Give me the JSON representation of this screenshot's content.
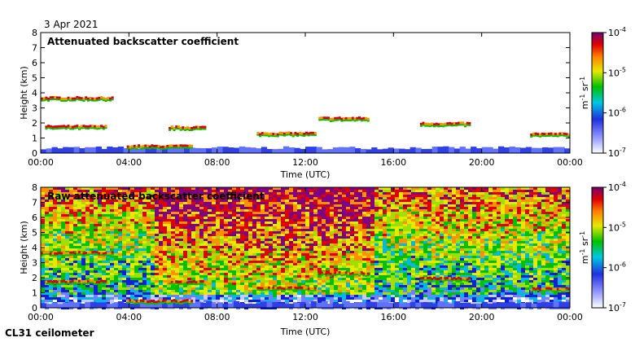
{
  "date": "3 Apr 2021",
  "footer": "CL31 ceilometer",
  "chart_data": [
    {
      "type": "heatmap",
      "title": "Attenuated backscatter coefficient",
      "xlabel": "Time (UTC)",
      "ylabel": "Height (km)",
      "x_ticks": [
        "00:00",
        "04:00",
        "08:00",
        "12:00",
        "16:00",
        "20:00",
        "00:00"
      ],
      "y_ticks": [
        "0",
        "1",
        "2",
        "3",
        "4",
        "5",
        "6",
        "7",
        "8"
      ],
      "xlim_hours": [
        0,
        24
      ],
      "ylim_km": [
        0,
        8
      ],
      "colorbar": {
        "scale": "log",
        "range": [
          1e-07,
          0.0001
        ],
        "ticks": [
          "10^-7",
          "10^-6",
          "10^-5",
          "10^-4"
        ],
        "units": "m^-1 sr^-1"
      },
      "background": "none",
      "features": [
        {
          "start_h": 0.0,
          "end_h": 3.3,
          "height_km": 3.65,
          "kind": "cloud"
        },
        {
          "start_h": 0.2,
          "end_h": 3.0,
          "height_km": 1.75,
          "kind": "cloud"
        },
        {
          "start_h": 3.9,
          "end_h": 6.8,
          "height_km": 0.45,
          "kind": "cloud"
        },
        {
          "start_h": 5.8,
          "end_h": 7.4,
          "height_km": 1.7,
          "kind": "cloud"
        },
        {
          "start_h": 9.8,
          "end_h": 12.4,
          "height_km": 1.3,
          "kind": "cloud"
        },
        {
          "start_h": 12.6,
          "end_h": 14.8,
          "height_km": 2.3,
          "kind": "cloud"
        },
        {
          "start_h": 17.2,
          "end_h": 19.5,
          "height_km": 1.95,
          "kind": "cloud"
        },
        {
          "start_h": 22.2,
          "end_h": 24.0,
          "height_km": 1.25,
          "kind": "cloud"
        }
      ]
    },
    {
      "type": "heatmap",
      "title": "Raw attenuated backscatter coefficient",
      "xlabel": "Time (UTC)",
      "ylabel": "Height (km)",
      "x_ticks": [
        "00:00",
        "04:00",
        "08:00",
        "12:00",
        "16:00",
        "20:00",
        "00:00"
      ],
      "y_ticks": [
        "0",
        "1",
        "2",
        "3",
        "4",
        "5",
        "6",
        "7",
        "8"
      ],
      "xlim_hours": [
        0,
        24
      ],
      "ylim_km": [
        0,
        8
      ],
      "colorbar": {
        "scale": "log",
        "range": [
          1e-07,
          0.0001
        ],
        "ticks": [
          "10^-7",
          "10^-6",
          "10^-5",
          "10^-4"
        ],
        "units": "m^-1 sr^-1"
      },
      "background": "noise",
      "features": [
        {
          "start_h": 0.0,
          "end_h": 3.3,
          "height_km": 3.65,
          "kind": "cloud"
        },
        {
          "start_h": 0.2,
          "end_h": 3.0,
          "height_km": 1.75,
          "kind": "cloud"
        },
        {
          "start_h": 3.9,
          "end_h": 6.8,
          "height_km": 0.45,
          "kind": "cloud"
        },
        {
          "start_h": 5.8,
          "end_h": 7.4,
          "height_km": 1.7,
          "kind": "cloud"
        },
        {
          "start_h": 9.8,
          "end_h": 12.4,
          "height_km": 1.3,
          "kind": "cloud"
        },
        {
          "start_h": 12.6,
          "end_h": 14.8,
          "height_km": 2.3,
          "kind": "cloud"
        },
        {
          "start_h": 17.2,
          "end_h": 19.5,
          "height_km": 1.95,
          "kind": "cloud"
        },
        {
          "start_h": 22.2,
          "end_h": 24.0,
          "height_km": 1.25,
          "kind": "cloud"
        }
      ]
    }
  ]
}
